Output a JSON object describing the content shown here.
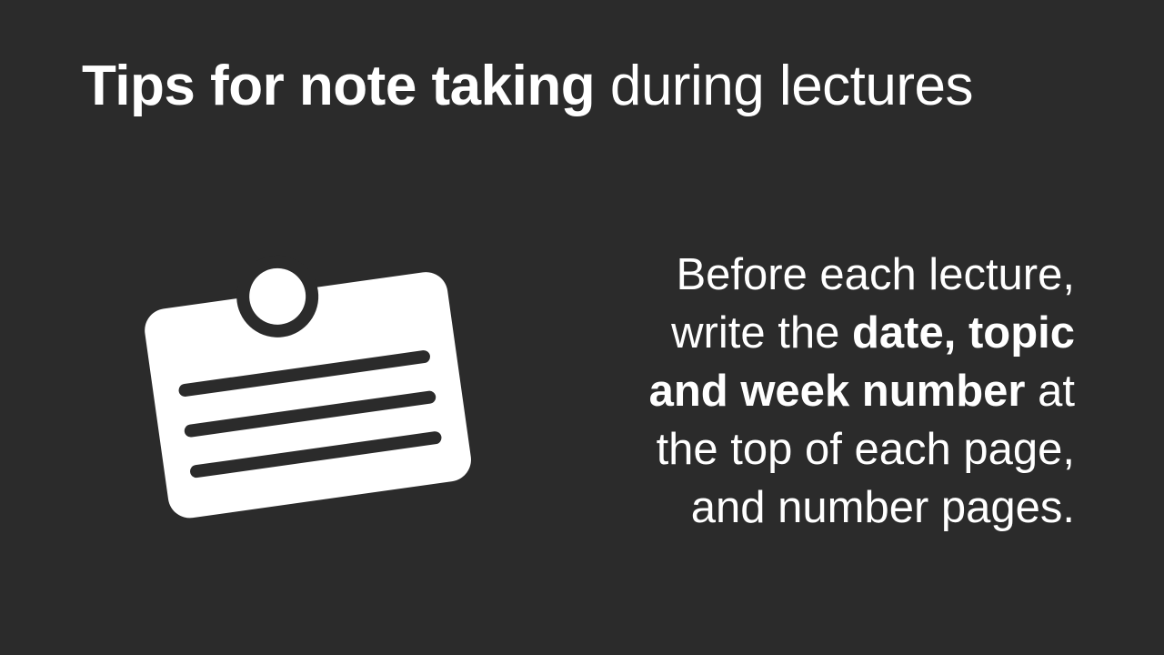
{
  "title": {
    "bold": "Tips for note taking",
    "regular": "during lectures"
  },
  "icon": {
    "name": "note-card-icon",
    "color": "#ffffff"
  },
  "body": {
    "line1": "Before each lecture,",
    "line2_regular": "write the",
    "line2_bold": "date, topic",
    "line3_bold": "and week number",
    "line3_regular": "at",
    "line4": "the top of each page,",
    "line5": "and number pages."
  },
  "colors": {
    "background": "#2b2b2b",
    "text": "#ffffff"
  }
}
